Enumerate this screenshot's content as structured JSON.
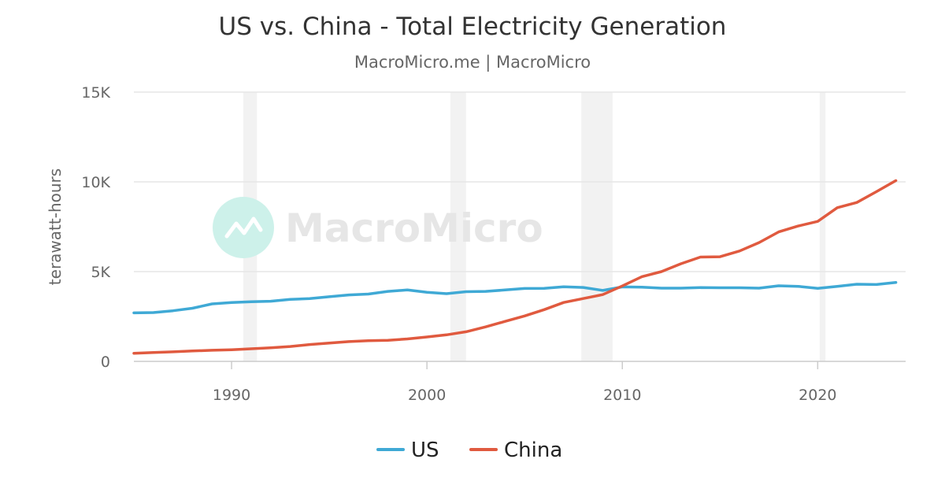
{
  "chart_data": {
    "type": "line",
    "title": "US vs. China - Total Electricity Generation",
    "subtitle": "MacroMicro.me | MacroMicro",
    "ylabel": "terawatt-hours",
    "xlabel": "",
    "xlim": [
      1985,
      2024.5
    ],
    "ylim": [
      0,
      15000
    ],
    "yticks": [
      0,
      5000,
      10000,
      15000
    ],
    "ytick_labels": [
      "0",
      "5K",
      "10K",
      "15K"
    ],
    "xticks": [
      1990,
      2000,
      2010,
      2020
    ],
    "xtick_labels": [
      "1990",
      "2000",
      "2010",
      "2020"
    ],
    "grid": true,
    "legend_position": "bottom-center",
    "watermark": "MacroMicro",
    "recession_bands": [
      [
        1990.6,
        1991.3
      ],
      [
        2001.2,
        2002.0
      ],
      [
        2007.9,
        2009.5
      ],
      [
        2020.1,
        2020.4
      ]
    ],
    "colors": {
      "US": "#3fa9d5",
      "China": "#e05a3f",
      "grid": "#e6e6e6",
      "band": "#f2f2f2",
      "axis": "#cccccc",
      "watermark_circle": "#cdf1ea"
    },
    "x": [
      1985,
      1986,
      1987,
      1988,
      1989,
      1990,
      1991,
      1992,
      1993,
      1994,
      1995,
      1996,
      1997,
      1998,
      1999,
      2000,
      2001,
      2002,
      2003,
      2004,
      2005,
      2006,
      2007,
      2008,
      2009,
      2010,
      2011,
      2012,
      2013,
      2014,
      2015,
      2016,
      2017,
      2018,
      2019,
      2020,
      2021,
      2022,
      2023,
      2024
    ],
    "series": [
      {
        "name": "US",
        "values": [
          2700,
          2720,
          2820,
          2960,
          3200,
          3280,
          3320,
          3350,
          3450,
          3500,
          3600,
          3700,
          3750,
          3900,
          3980,
          3850,
          3770,
          3880,
          3900,
          3980,
          4060,
          4070,
          4160,
          4120,
          3950,
          4150,
          4130,
          4080,
          4080,
          4110,
          4100,
          4100,
          4080,
          4210,
          4180,
          4070,
          4180,
          4300,
          4280,
          4400
        ]
      },
      {
        "name": "China",
        "values": [
          450,
          490,
          530,
          580,
          620,
          650,
          700,
          760,
          830,
          940,
          1020,
          1100,
          1150,
          1170,
          1250,
          1360,
          1480,
          1650,
          1920,
          2230,
          2530,
          2880,
          3280,
          3500,
          3720,
          4200,
          4720,
          5000,
          5440,
          5810,
          5830,
          6150,
          6620,
          7210,
          7540,
          7800,
          8560,
          8850,
          9450,
          10070
        ]
      }
    ]
  }
}
